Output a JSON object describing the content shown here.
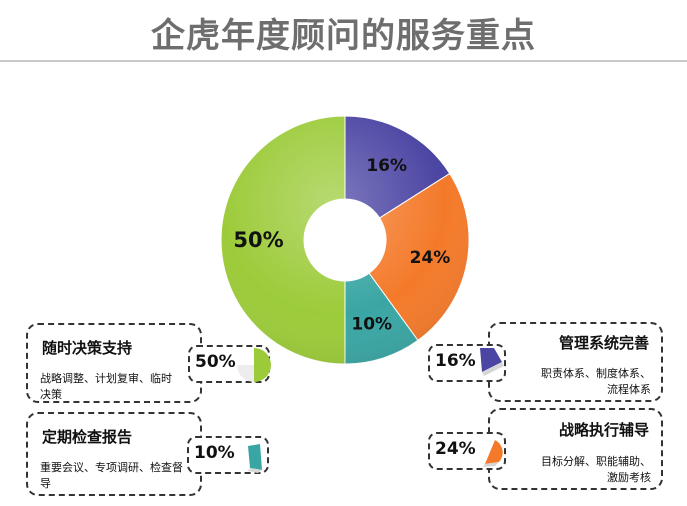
{
  "title": "企虎年度顾问的服务重点",
  "colors": {
    "title": "#6e6e6e",
    "green": "#9ccb3a",
    "purple": "#4b45a3",
    "orange": "#f47a2a",
    "teal": "#3aa6a4"
  },
  "chart_data": {
    "type": "pie",
    "variant": "donut",
    "slices": [
      {
        "label": "16%",
        "value": 16,
        "color": "#4b45a3"
      },
      {
        "label": "24%",
        "value": 24,
        "color": "#f47a2a"
      },
      {
        "label": "10%",
        "value": 10,
        "color": "#3aa6a4"
      },
      {
        "label": "50%",
        "value": 50,
        "color": "#9ccb3a"
      }
    ]
  },
  "cards": {
    "decision": {
      "title": "随时决策支持",
      "desc": "战略调整、计划复审、临时决策",
      "pct": "50%",
      "icon": "green-pie-half-icon"
    },
    "inspection": {
      "title": "定期检查报告",
      "desc": "重要会议、专项调研、检查督导",
      "pct": "10%",
      "icon": "teal-pie-wedge-icon"
    },
    "system": {
      "title": "管理系统完善",
      "desc": "职责体系、制度体系、流程体系",
      "pct": "16%",
      "icon": "purple-pie-wedge-icon"
    },
    "strategy": {
      "title": "战略执行辅导",
      "desc": "目标分解、职能辅助、激励考核",
      "pct": "24%",
      "icon": "orange-pie-wedge-icon"
    }
  }
}
